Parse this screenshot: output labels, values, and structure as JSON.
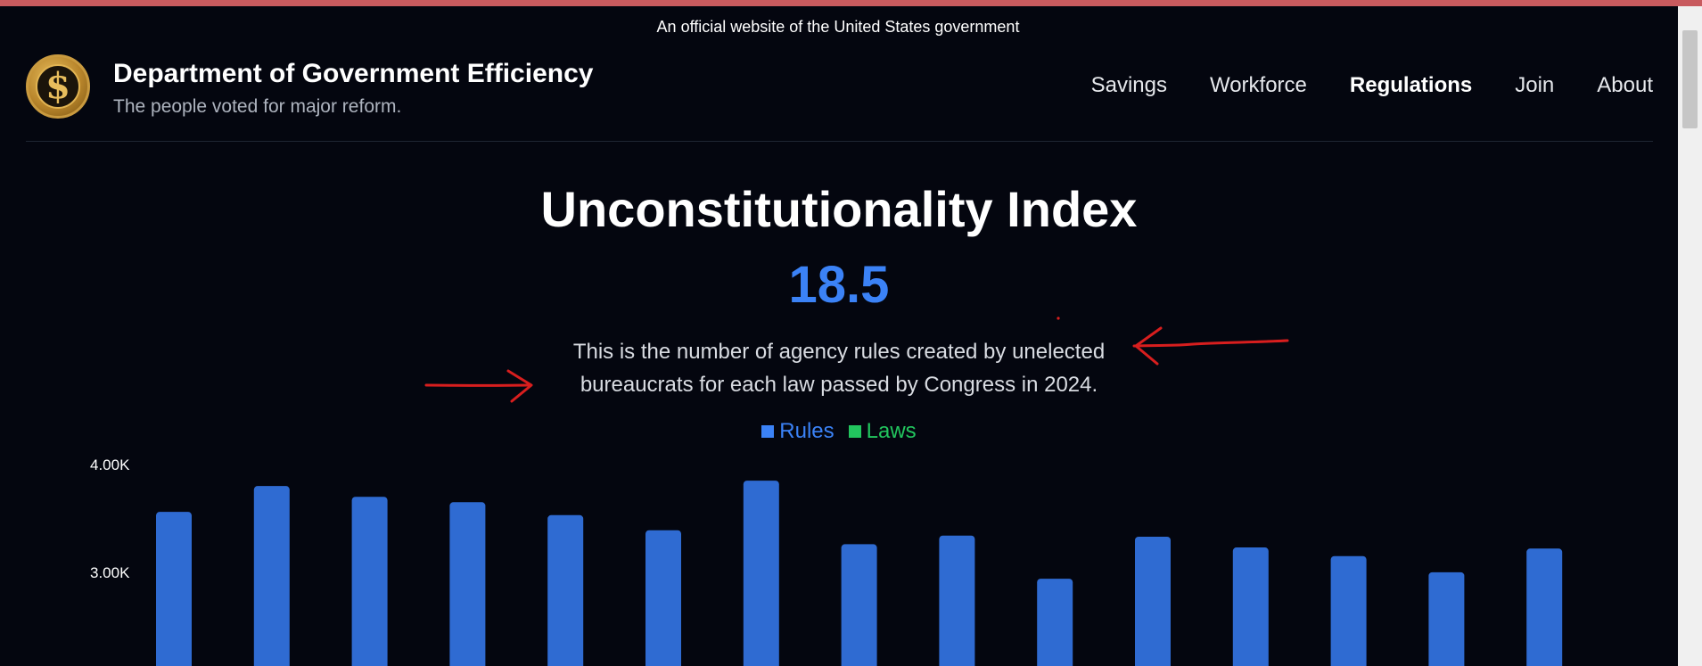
{
  "banner": {
    "text": "An official website of the United States government"
  },
  "site": {
    "title": "Department of Government Efficiency",
    "tagline": "The people voted for major reform.",
    "logo_icon": "dollar-seal-icon"
  },
  "nav": {
    "items": [
      {
        "label": "Savings"
      },
      {
        "label": "Workforce"
      },
      {
        "label": "Regulations",
        "active": true
      },
      {
        "label": "Join"
      },
      {
        "label": "About"
      }
    ]
  },
  "index": {
    "title": "Unconstitutionality Index",
    "value": "18.5",
    "description": "This is the number of agency rules created by unelected bureaucrats for each law passed by Congress in 2024."
  },
  "colors": {
    "rules": "#2f6bd2",
    "laws": "#22c55e",
    "accent": "#3b82f6",
    "annotation": "#d81e1e"
  },
  "chart_data": {
    "type": "bar",
    "title": "",
    "xlabel": "",
    "ylabel": "",
    "legend": [
      {
        "name": "Rules",
        "color": "#3b82f6"
      },
      {
        "name": "Laws",
        "color": "#22c55e"
      }
    ],
    "y_tick_labels": [
      "4.00K",
      "3.00K"
    ],
    "ylim": [
      2130,
      4000
    ],
    "series": [
      {
        "name": "Rules",
        "values": [
          3560,
          3800,
          3700,
          3650,
          3530,
          3390,
          3850,
          3260,
          3340,
          2940,
          3330,
          3230,
          3150,
          3000,
          3220
        ]
      }
    ]
  }
}
